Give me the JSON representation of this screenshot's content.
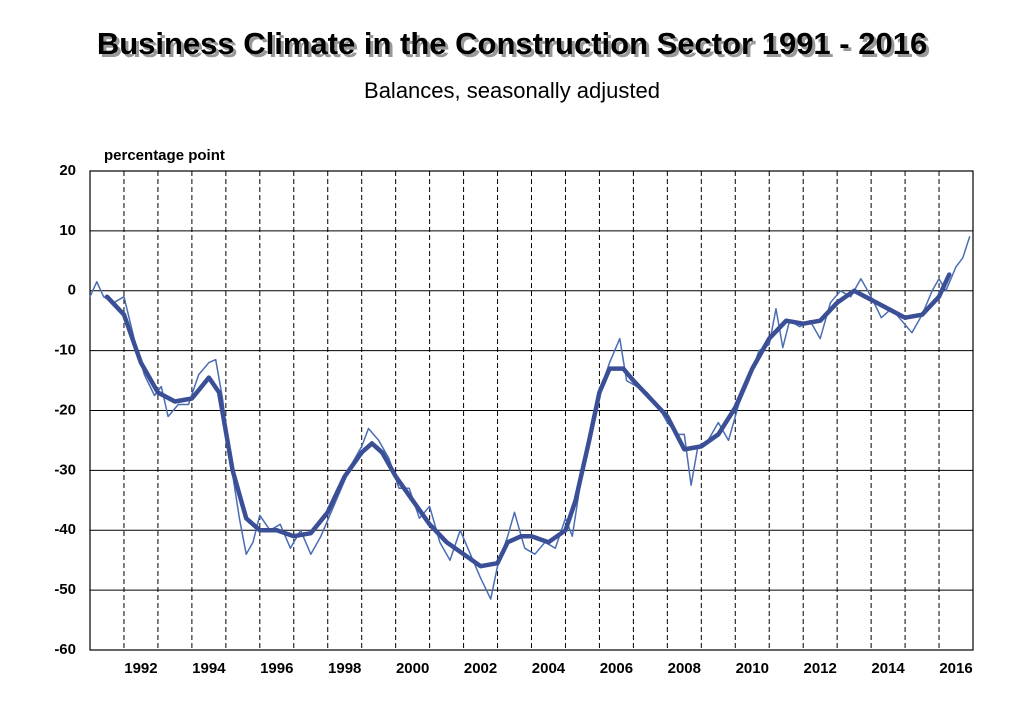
{
  "chart_data": {
    "type": "line",
    "title": "Business Climate in the Construction Sector 1991 - 2016",
    "subtitle": "Balances, seasonally adjusted",
    "y_label": "percentage point",
    "xlim": [
      1991,
      2017
    ],
    "xticks": [
      1992,
      1994,
      1996,
      1998,
      2000,
      2002,
      2004,
      2006,
      2008,
      2010,
      2012,
      2014,
      2016
    ],
    "xgrid": [
      1993,
      1995,
      1997,
      1999,
      2001,
      2003,
      2005,
      2007,
      2009,
      2011,
      2013,
      2015
    ],
    "ylim": [
      -60,
      20
    ],
    "yticks": [
      -60,
      -50,
      -40,
      -30,
      -20,
      -10,
      0,
      10,
      20
    ],
    "grid": true,
    "series": [
      {
        "color": "#4a6db5",
        "width": 1.5,
        "x": [
          1991.0,
          1991.2,
          1991.4,
          1991.7,
          1992.0,
          1992.3,
          1992.6,
          1992.9,
          1993.1,
          1993.3,
          1993.6,
          1993.9,
          1994.2,
          1994.5,
          1994.7,
          1994.9,
          1995.1,
          1995.4,
          1995.6,
          1995.8,
          1996.0,
          1996.3,
          1996.6,
          1996.9,
          1997.2,
          1997.5,
          1997.8,
          1998.1,
          1998.4,
          1998.7,
          1999.0,
          1999.2,
          1999.5,
          1999.8,
          2000.1,
          2000.4,
          2000.7,
          2001.0,
          2001.3,
          2001.6,
          2001.9,
          2002.2,
          2002.5,
          2002.8,
          2003.0,
          2003.3,
          2003.5,
          2003.8,
          2004.1,
          2004.4,
          2004.7,
          2005.0,
          2005.2,
          2005.5,
          2005.8,
          2006.0,
          2006.3,
          2006.6,
          2006.8,
          2007.1,
          2007.4,
          2007.7,
          2008.0,
          2008.3,
          2008.5,
          2008.7,
          2008.9,
          2009.2,
          2009.5,
          2009.8,
          2010.1,
          2010.4,
          2010.7,
          2011.0,
          2011.2,
          2011.4,
          2011.6,
          2011.9,
          2012.2,
          2012.5,
          2012.8,
          2013.1,
          2013.4,
          2013.7,
          2014.0,
          2014.3,
          2014.6,
          2014.9,
          2015.2,
          2015.5,
          2015.8,
          2016.0,
          2016.2,
          2016.5,
          2016.7,
          2016.9
        ],
        "values": [
          -1,
          1.5,
          -1,
          -2,
          -1,
          -8,
          -14,
          -17.5,
          -16,
          -21,
          -19,
          -19,
          -14,
          -12,
          -11.5,
          -18,
          -27,
          -38,
          -44,
          -42,
          -37.5,
          -40,
          -39,
          -43,
          -40,
          -44,
          -41,
          -37,
          -33,
          -29,
          -26,
          -23,
          -25,
          -28,
          -33,
          -33,
          -38,
          -36,
          -42,
          -45,
          -40,
          -44,
          -48,
          -51.5,
          -46,
          -41,
          -37,
          -43,
          -44,
          -42,
          -43,
          -38,
          -41,
          -30,
          -22,
          -17,
          -12,
          -8,
          -15,
          -16,
          -17,
          -19,
          -22,
          -24,
          -24,
          -32.5,
          -26,
          -25,
          -22,
          -25,
          -19,
          -15,
          -10,
          -9,
          -3,
          -9.5,
          -5,
          -6,
          -5,
          -8,
          -2,
          0,
          -1,
          2,
          -1,
          -4.5,
          -3,
          -5,
          -7,
          -4,
          0,
          2,
          0,
          4,
          5.5,
          9
        ]
      },
      {
        "color": "#3a4f96",
        "width": 4.5,
        "x": [
          1991.5,
          1992.0,
          1992.5,
          1993.0,
          1993.5,
          1994.0,
          1994.5,
          1994.8,
          1995.2,
          1995.6,
          1996.0,
          1996.5,
          1997.0,
          1997.5,
          1998.0,
          1998.5,
          1999.0,
          1999.3,
          1999.6,
          2000.0,
          2000.5,
          2001.0,
          2001.5,
          2002.0,
          2002.5,
          2003.0,
          2003.3,
          2003.7,
          2004.0,
          2004.5,
          2005.0,
          2005.3,
          2005.7,
          2006.0,
          2006.3,
          2006.7,
          2007.0,
          2007.5,
          2008.0,
          2008.5,
          2009.0,
          2009.5,
          2010.0,
          2010.5,
          2011.0,
          2011.5,
          2012.0,
          2012.5,
          2013.0,
          2013.5,
          2014.0,
          2014.5,
          2015.0,
          2015.5,
          2016.0,
          2016.3
        ],
        "values": [
          -1,
          -4,
          -12,
          -17,
          -18.5,
          -18,
          -14.5,
          -17,
          -30,
          -38,
          -40,
          -40,
          -41,
          -40.5,
          -37,
          -31,
          -27,
          -25.5,
          -27,
          -31,
          -35,
          -39,
          -42,
          -44,
          -46,
          -45.5,
          -42,
          -41,
          -41,
          -42,
          -40,
          -35,
          -25,
          -17,
          -13,
          -13,
          -15,
          -18,
          -21,
          -26.5,
          -26,
          -24,
          -19.5,
          -13,
          -8,
          -5,
          -5.5,
          -5,
          -2,
          0,
          -1.5,
          -3,
          -4.5,
          -4,
          -1,
          2.7
        ]
      }
    ]
  }
}
